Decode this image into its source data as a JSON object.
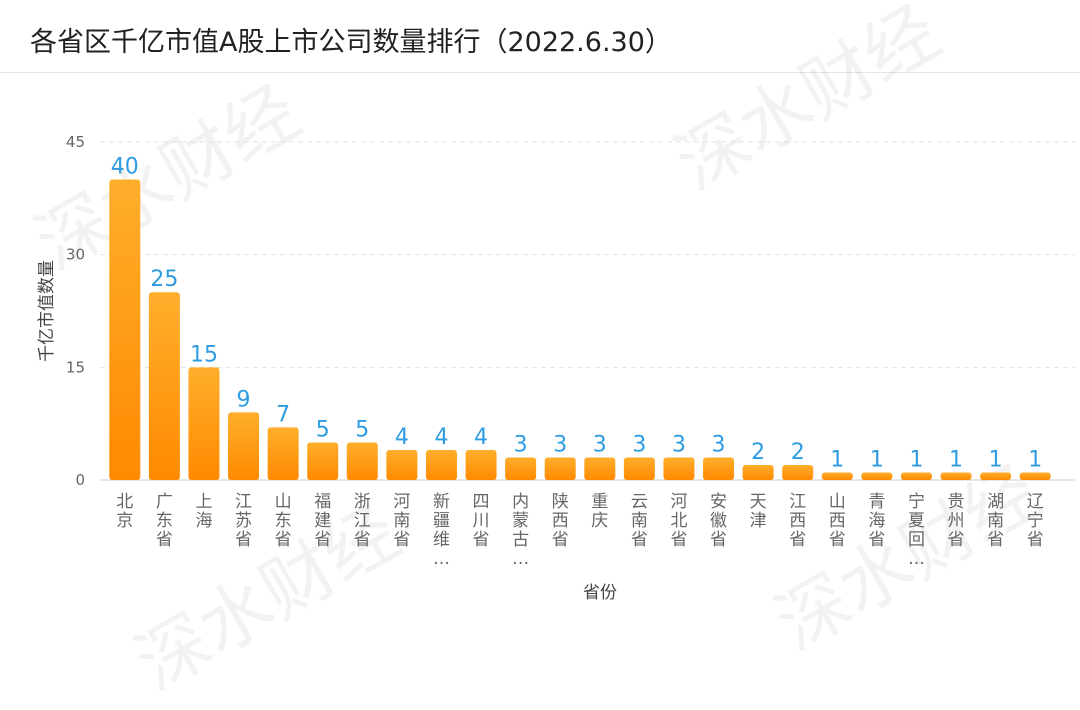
{
  "title": "各省区千亿市值A股上市公司数量排行（2022.6.30）",
  "watermark": "深水财经",
  "chart_data": {
    "type": "bar",
    "title": "各省区千亿市值A股上市公司数量排行（2022.6.30）",
    "xlabel": "省份",
    "ylabel": "千亿市值数量",
    "ylim": [
      0,
      45
    ],
    "yticks": [
      0,
      15,
      30,
      45
    ],
    "grid": true,
    "legend": "none",
    "categories": [
      "北京",
      "广东省",
      "上海",
      "江苏省",
      "山东省",
      "福建省",
      "浙江省",
      "河南省",
      "新疆维…",
      "四川省",
      "内蒙古…",
      "陕西省",
      "重庆",
      "云南省",
      "河北省",
      "安徽省",
      "天津",
      "江西省",
      "山西省",
      "青海省",
      "宁夏回…",
      "贵州省",
      "湖南省",
      "辽宁省"
    ],
    "values": [
      40,
      25,
      15,
      9,
      7,
      5,
      5,
      4,
      4,
      4,
      3,
      3,
      3,
      3,
      3,
      3,
      2,
      2,
      1,
      1,
      1,
      1,
      1,
      1
    ],
    "colors": {
      "bar_top": "#FFAE2C",
      "bar_bottom": "#FF8A00",
      "data_label": "#2F9BE0",
      "axis_text": "#666666",
      "grid": "#e2e2e2"
    }
  }
}
